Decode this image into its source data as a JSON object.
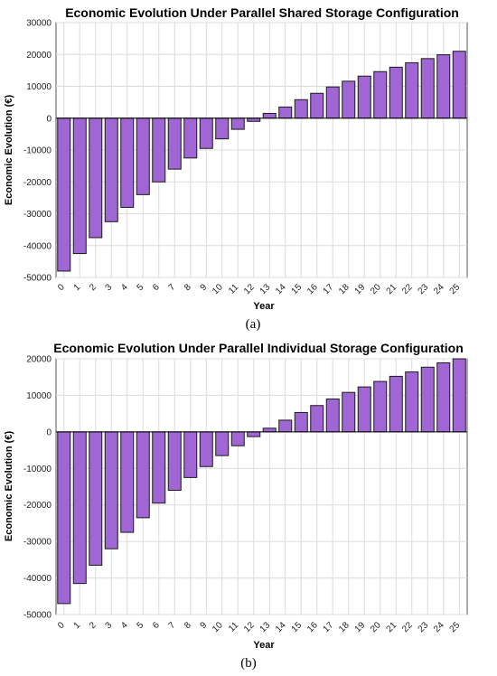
{
  "chart_data": [
    {
      "type": "bar",
      "title": "Economic Evolution Under Parallel Shared Storage Configuration",
      "xlabel": "Year",
      "ylabel": "Economic Evolution (€)",
      "caption": "(a)",
      "categories": [
        "0",
        "1",
        "2",
        "3",
        "4",
        "5",
        "6",
        "7",
        "8",
        "9",
        "10",
        "11",
        "12",
        "13",
        "14",
        "15",
        "16",
        "17",
        "18",
        "19",
        "20",
        "21",
        "22",
        "23",
        "24",
        "25"
      ],
      "values": [
        -48000,
        -42500,
        -37500,
        -32500,
        -28000,
        -24000,
        -20000,
        -16000,
        -12500,
        -9500,
        -6500,
        -3500,
        -1000,
        1500,
        3500,
        5800,
        7800,
        9800,
        11600,
        13200,
        14600,
        16000,
        17400,
        18700,
        19900,
        21000
      ],
      "ylim": [
        -50000,
        30000
      ],
      "yticks": [
        "30000",
        "20000",
        "10000",
        "0",
        "-10000",
        "-20000",
        "-30000",
        "-40000",
        "-50000"
      ],
      "grid": true,
      "bar_color": "#a066d3"
    },
    {
      "type": "bar",
      "title": "Economic Evolution Under Parallel Individual Storage Configuration",
      "xlabel": "Year",
      "ylabel": "Economic Evolution (€)",
      "caption": "(b)",
      "categories": [
        "0",
        "1",
        "2",
        "3",
        "4",
        "5",
        "6",
        "7",
        "8",
        "9",
        "10",
        "11",
        "12",
        "13",
        "14",
        "15",
        "16",
        "17",
        "18",
        "19",
        "20",
        "21",
        "22",
        "23",
        "24",
        "25"
      ],
      "values": [
        -47000,
        -41500,
        -36500,
        -32000,
        -27500,
        -23500,
        -19500,
        -16000,
        -12500,
        -9500,
        -6500,
        -3800,
        -1300,
        1000,
        3200,
        5300,
        7200,
        9000,
        10800,
        12300,
        13800,
        15200,
        16400,
        17700,
        18900,
        20000
      ],
      "ylim": [
        -50000,
        20000
      ],
      "yticks": [
        "20000",
        "10000",
        "0",
        "-10000",
        "-20000",
        "-30000",
        "-40000",
        "-50000"
      ],
      "grid": true,
      "bar_color": "#a066d3"
    }
  ]
}
